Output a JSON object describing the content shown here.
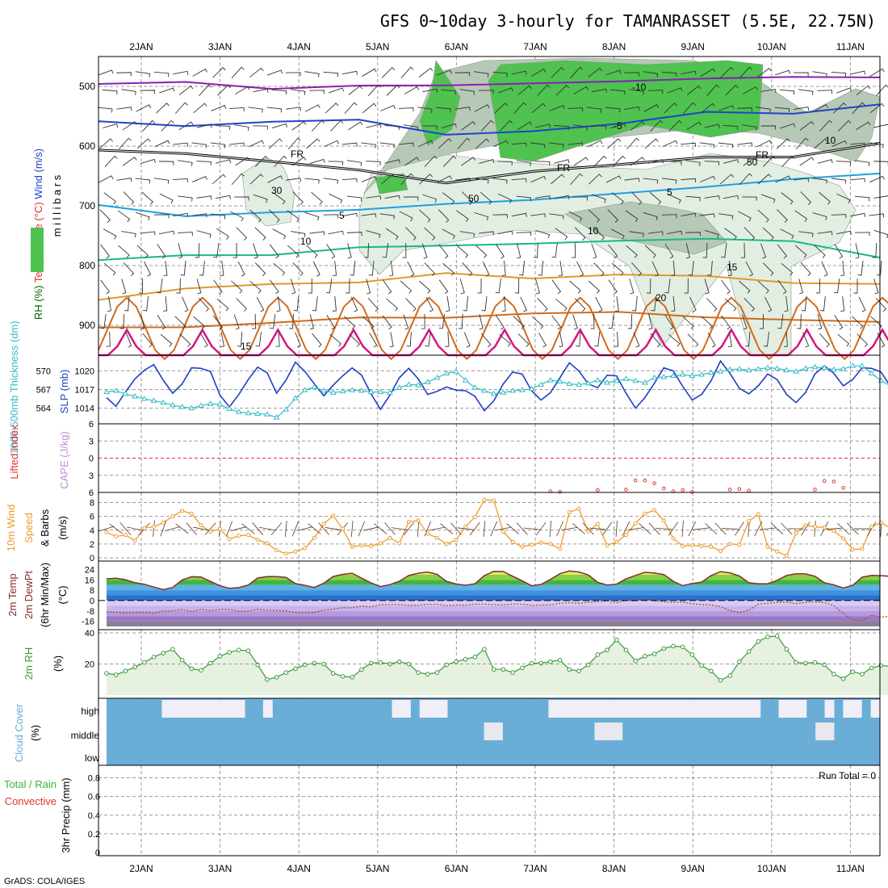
{
  "title": "GFS 0~10day 3-hourly for TAMANRASSET (5.5E, 22.75N)",
  "credit": "GrADS: COLA/IGES",
  "run_total": "Run Total = 0",
  "colors": {
    "rh_green": "#4fc24f",
    "rh_gray": "#b6c8b6",
    "rh_light": "#e2eee2",
    "temp_purple": "#8a1fb5",
    "temp_blue": "#1c45c9",
    "temp_lightblue": "#1fa0e0",
    "temp_teal": "#17b98a",
    "temp_orange": "#e0992a",
    "temp_darkorange": "#d06a1c",
    "temp_magenta": "#d5157e",
    "slp": "#1f3fc4",
    "thickness": "#33bcc8",
    "wind10m": "#f09a2a",
    "rh2m": "#3a9a3a",
    "cloud": "#6aaed8",
    "precip_red": "#e0342e"
  },
  "chart_data": [
    {
      "type": "contour",
      "name": "upper-air",
      "ylabel_parts": [
        "RH (%)",
        "Temperature (°C)",
        "Wind (m/s)"
      ],
      "yaxis_label": "m i l l i b a r s",
      "y_ticks": [
        500,
        600,
        700,
        800,
        900
      ],
      "ylim": [
        950,
        450
      ],
      "x_ticks": [
        "2JAN",
        "3JAN",
        "4JAN",
        "5JAN",
        "6JAN",
        "7JAN",
        "8JAN",
        "9JAN",
        "10JAN",
        "11JAN"
      ],
      "contour_labels": [
        "-10",
        "-5",
        "FR",
        "FR",
        "FR",
        "5",
        "5",
        "10",
        "10",
        "15",
        "15",
        "20",
        "50",
        "50",
        "30",
        "10"
      ],
      "isotherms": [
        {
          "name": "-10",
          "values": [
            -10.5,
            -10.3,
            -10.1,
            -10.8,
            -10.2,
            -10.0,
            -9.8,
            -10.4,
            -10.1,
            -10.0
          ]
        },
        {
          "name": "-5",
          "values": [
            -5.2,
            -4.8,
            -5.1,
            -4.9,
            -5.5,
            -5.0,
            -4.7,
            -5.3,
            -4.9,
            -5.0
          ]
        },
        {
          "name": "0",
          "values": [
            0.2,
            -0.3,
            0.1,
            0.0,
            -0.4,
            0.3,
            0.1,
            -0.2,
            0.4,
            0.0
          ]
        },
        {
          "name": "5",
          "values": [
            4.8,
            5.3,
            5.1,
            5.2,
            4.6,
            5.0,
            4.9,
            5.4,
            5.0,
            5.1
          ]
        },
        {
          "name": "10",
          "values": [
            10.1,
            9.7,
            10.3,
            9.9,
            10.2,
            10.4,
            9.8,
            10.0,
            9.9,
            10.2
          ]
        },
        {
          "name": "15",
          "values": [
            15.3,
            14.8,
            15.1,
            15.4,
            14.7,
            15.2,
            15.0,
            15.3,
            14.9,
            15.1
          ]
        },
        {
          "name": "20",
          "values": [
            19.8,
            20.4,
            20.1,
            19.6,
            20.3,
            20.0,
            19.7,
            20.2,
            20.1,
            19.9
          ]
        }
      ]
    },
    {
      "type": "line",
      "name": "thickness-slp",
      "ylabel_left": "1000-500mb Thickness (dm)",
      "ylabel_right": "SLP (mb)",
      "thickness_ticks": [
        570,
        567,
        564
      ],
      "slp_ticks": [
        1020,
        1017,
        1014
      ],
      "series": [
        {
          "name": "SLP (mb)",
          "values": [
            1015.7,
            1014.3,
            1016.6,
            1018.7,
            1020.1,
            1021.0,
            1018.5,
            1016.4,
            1017.9,
            1020.5,
            1020.4,
            1019.9,
            1016.1,
            1014.2,
            1016.2,
            1018.6,
            1020.6,
            1019.7,
            1016.4,
            1018.5,
            1021.4,
            1019.9,
            1017.9,
            1016.0,
            1017.7,
            1019.2,
            1020.5,
            1019.3,
            1016.3,
            1013.8,
            1016.1,
            1018.9,
            1020.4,
            1018.7,
            1016.2,
            1016.7,
            1017.4,
            1016.9,
            1016.8,
            1015.9,
            1013.6,
            1015.2,
            1017.9,
            1019.8,
            1019.5,
            1016.8,
            1015.3,
            1016.5,
            1018.9,
            1021.3,
            1020.0,
            1017.9,
            1017.3,
            1019.3,
            1019.2,
            1016.4,
            1014.0,
            1015.7,
            1018.0,
            1020.5,
            1020.0,
            1017.5,
            1015.3,
            1016.2,
            1018.4,
            1021.6,
            1019.6,
            1017.2,
            1016.3,
            1017.6,
            1019.5,
            1018.6,
            1016.2,
            1014.9,
            1016.5,
            1019.5,
            1020.8,
            1019.6,
            1017.6,
            1018.6,
            1020.5,
            1020.4,
            1019.8,
            1017.5
          ]
        },
        {
          "name": "Thickness (dm)",
          "values": [
            566.6,
            566.8,
            566.3,
            565.9,
            565.5,
            565.2,
            564.9,
            564.5,
            564.2,
            564.0,
            564.4,
            564.7,
            564.6,
            563.9,
            563.4,
            563.2,
            563.1,
            563.0,
            562.5,
            563.8,
            565.6,
            566.9,
            567.4,
            566.8,
            566.5,
            566.7,
            566.9,
            566.8,
            566.6,
            566.6,
            566.5,
            567.3,
            567.8,
            567.7,
            568.2,
            568.9,
            569.6,
            569.9,
            568.5,
            567.3,
            566.8,
            566.3,
            566.5,
            566.8,
            566.9,
            567.1,
            567.8,
            568.5,
            568.3,
            567.9,
            567.8,
            568.0,
            568.5,
            568.1,
            568.4,
            568.7,
            568.4,
            568.1,
            568.9,
            569.0,
            569.2,
            569.4,
            569.2,
            569.4,
            569.7,
            569.9,
            570.2,
            570.3,
            570.1,
            570.3,
            570.5,
            570.4,
            570.1,
            569.9,
            570.4,
            570.6,
            570.5,
            570.2,
            570.3,
            570.8,
            570.8,
            569.6,
            568.4,
            567.6
          ]
        }
      ]
    },
    {
      "type": "line",
      "name": "lifted-index-cape",
      "ylabel_left": "Lifted Index",
      "ylabel_right": "CAPE (J/kg)",
      "y_ticks": [
        "6",
        "3",
        "0",
        "3",
        "6"
      ],
      "y_values": [
        -6,
        -3,
        0,
        3,
        6
      ],
      "series": [
        {
          "name": "Lifted Index",
          "values": [
            {
              "x": 47,
              "y": 5.8
            },
            {
              "x": 48,
              "y": 5.9
            },
            {
              "x": 52,
              "y": 5.6
            },
            {
              "x": 55,
              "y": 5.5
            },
            {
              "x": 56,
              "y": 3.9
            },
            {
              "x": 57,
              "y": 3.9
            },
            {
              "x": 58,
              "y": 4.4
            },
            {
              "x": 59,
              "y": 5.3
            },
            {
              "x": 60,
              "y": 5.8
            },
            {
              "x": 61,
              "y": 5.6
            },
            {
              "x": 62,
              "y": 5.9
            },
            {
              "x": 66,
              "y": 5.5
            },
            {
              "x": 67,
              "y": 5.4
            },
            {
              "x": 68,
              "y": 5.7
            },
            {
              "x": 75,
              "y": 5.5
            },
            {
              "x": 76,
              "y": 4.0
            },
            {
              "x": 77,
              "y": 4.1
            },
            {
              "x": 78,
              "y": 5.2
            }
          ]
        }
      ]
    },
    {
      "type": "line",
      "name": "wind10m",
      "ylabel": "10m Wind Speed & Barbs (m/s)",
      "y_ticks": [
        0,
        2,
        4,
        6,
        8
      ],
      "ylim": [
        0,
        9
      ],
      "series": [
        {
          "name": "10m Wind Speed (m/s)",
          "values": [
            3.7,
            3.1,
            3.3,
            2.5,
            4.3,
            4.5,
            5.1,
            6.0,
            6.8,
            6.4,
            4.7,
            3.8,
            4.2,
            2.7,
            3.2,
            3.3,
            2.6,
            2.1,
            1.1,
            0.6,
            0.9,
            1.4,
            2.9,
            4.9,
            6.1,
            4.2,
            1.6,
            1.8,
            1.7,
            2.1,
            2.9,
            2.1,
            5.2,
            5.4,
            3.5,
            2.9,
            2.0,
            2.6,
            4.5,
            5.9,
            8.4,
            8.3,
            3.8,
            2.3,
            1.6,
            1.9,
            2.2,
            2.0,
            1.3,
            6.6,
            7.1,
            3.8,
            4.9,
            1.8,
            2.3,
            3.3,
            5.0,
            6.4,
            6.9,
            5.4,
            2.8,
            1.7,
            1.8,
            1.7,
            1.6,
            1.0,
            2.0,
            1.9,
            5.3,
            6.3,
            1.6,
            0.9,
            0.3,
            3.6,
            4.7,
            4.5,
            4.4,
            3.9,
            2.8,
            1.2,
            1.3,
            4.5,
            5.1,
            4.3
          ]
        }
      ]
    },
    {
      "type": "area",
      "name": "temp2m",
      "ylabel_parts": [
        "2m Temp",
        "2m DewPt",
        "(6hr Min/Max)",
        "(°C)"
      ],
      "y_ticks": [
        24,
        16,
        8,
        0,
        -8,
        -16
      ],
      "ylim": [
        -20,
        28
      ],
      "series": [
        {
          "name": "2m Temp (°C)",
          "values": [
            16.8,
            17.3,
            16.1,
            13.8,
            12.6,
            10.4,
            8.5,
            10.1,
            15.9,
            18.4,
            18.2,
            14.8,
            11.4,
            9.4,
            10.0,
            12.0,
            17.4,
            18.5,
            18.5,
            17.9,
            13.1,
            11.7,
            10.1,
            13.4,
            18.6,
            20.2,
            21.1,
            17.3,
            13.6,
            10.8,
            12.3,
            14.9,
            19.4,
            21.1,
            22.0,
            20.2,
            14.8,
            12.8,
            11.8,
            13.0,
            19.3,
            22.5,
            22.4,
            18.8,
            15.3,
            11.4,
            12.5,
            16.4,
            20.7,
            22.8,
            22.1,
            19.8,
            14.1,
            12.0,
            12.7,
            16.8,
            19.4,
            21.8,
            21.2,
            20.1,
            14.9,
            11.5,
            13.2,
            14.2,
            19.3,
            22.3,
            21.4,
            19.0,
            13.7,
            13.0,
            13.0,
            15.6,
            19.4,
            20.7,
            20.6,
            18.8,
            13.8,
            12.1,
            9.7,
            11.7,
            18.1,
            19.4,
            19.2,
            18.7
          ]
        },
        {
          "name": "2m DewPt (°C)",
          "values": [
            -8.7,
            -9.1,
            -9.6,
            -9.4,
            -9.2,
            -9.9,
            -8.1,
            -7.9,
            -7.0,
            -8.5,
            -6.7,
            -7.9,
            -6.9,
            -7.0,
            -8.4,
            -8.1,
            -6.7,
            -7.6,
            -7.7,
            -8.0,
            -9.2,
            -9.4,
            -9.1,
            -7.5,
            -6.7,
            -5.5,
            -5.6,
            -4.3,
            -4.9,
            -3.3,
            -3.2,
            -3.2,
            -3.7,
            -3.6,
            -2.9,
            -2.9,
            -4.0,
            -3.5,
            -3.6,
            -2.8,
            -2.8,
            -3.2,
            -3.5,
            -2.7,
            -2.8,
            -3.7,
            -3.5,
            -3.4,
            -2.1,
            -1.6,
            -2.1,
            -1.3,
            -1.0,
            -0.3,
            -1.7,
            0.1,
            -0.4,
            1.7,
            -0.2,
            -0.9,
            -1.5,
            -1.2,
            -2.5,
            -3.1,
            -3.4,
            -4.7,
            -7.7,
            -9.4,
            -7.5,
            -2.8,
            -2.2,
            -1.4,
            -1.2,
            -2.4,
            -1.5,
            -1.0,
            -1.7,
            -3.8,
            -10.0,
            -15.0,
            -15.4,
            -11.3,
            -12.8,
            -12.1
          ]
        }
      ]
    },
    {
      "type": "area",
      "name": "rh2m",
      "ylabel": "2m RH (%)",
      "y_ticks": [
        40,
        20
      ],
      "ylim": [
        0,
        40
      ],
      "series": [
        {
          "name": "2m RH (%)",
          "values": [
            14.0,
            13.0,
            15.5,
            18.0,
            21.0,
            24.5,
            27.0,
            29.5,
            22.5,
            17.0,
            16.0,
            20.5,
            25.0,
            27.5,
            29.0,
            28.5,
            19.5,
            10.0,
            11.5,
            14.5,
            17.0,
            19.5,
            20.5,
            20.0,
            14.0,
            12.0,
            11.5,
            16.5,
            20.5,
            21.0,
            20.0,
            21.5,
            20.0,
            14.5,
            13.5,
            14.5,
            19.5,
            21.5,
            23.0,
            24.5,
            29.5,
            16.5,
            16.5,
            14.5,
            17.5,
            20.5,
            20.5,
            21.5,
            22.5,
            16.5,
            15.5,
            19.5,
            26.0,
            29.0,
            35.5,
            29.0,
            22.0,
            25.0,
            26.5,
            30.0,
            31.5,
            31.0,
            26.0,
            19.0,
            15.5,
            9.5,
            12.5,
            21.5,
            28.0,
            34.5,
            37.5,
            38.0,
            29.5,
            21.0,
            20.5,
            21.0,
            19.5,
            13.5,
            10.5,
            15.0,
            13.5,
            17.5,
            19.0,
            18.5
          ]
        }
      ]
    },
    {
      "type": "heatmap",
      "name": "cloud-cover",
      "ylabel": "Cloud Cover (%)",
      "y_ticks": [
        "high",
        "middle",
        "low"
      ],
      "note": "blue = cloud cover, light = clear",
      "high_clear": [
        0,
        0,
        0,
        0,
        0,
        0,
        1,
        1,
        1,
        1,
        1,
        1,
        1,
        1,
        1,
        0,
        0,
        1,
        0,
        0,
        0,
        0,
        0,
        0,
        0,
        0,
        0,
        0,
        0,
        0,
        0,
        1,
        1,
        0,
        1,
        1,
        1,
        0,
        0,
        0,
        0,
        0,
        0,
        0,
        0,
        0,
        0,
        0,
        1,
        1,
        1,
        1,
        1,
        1,
        1,
        1,
        1,
        1,
        1,
        1,
        1,
        1,
        1,
        1,
        1,
        1,
        1,
        1,
        1,
        1,
        1,
        0,
        0,
        1,
        1,
        1,
        0,
        0,
        1,
        0,
        1,
        1,
        0,
        1
      ],
      "middle_clear": [
        0,
        0,
        0,
        0,
        0,
        0,
        0,
        0,
        0,
        0,
        0,
        0,
        0,
        0,
        0,
        0,
        0,
        0,
        0,
        0,
        0,
        0,
        0,
        0,
        0,
        0,
        0,
        0,
        0,
        0,
        0,
        0,
        0,
        0,
        0,
        0,
        0,
        0,
        0,
        0,
        0,
        1,
        1,
        0,
        0,
        0,
        0,
        0,
        0,
        0,
        0,
        0,
        0,
        1,
        1,
        1,
        0,
        0,
        0,
        0,
        0,
        0,
        0,
        0,
        0,
        0,
        0,
        0,
        0,
        0,
        0,
        0,
        0,
        0,
        0,
        0,
        0,
        1,
        1,
        0,
        0,
        0,
        0,
        0
      ]
    },
    {
      "type": "bar",
      "name": "precip",
      "ylabel_parts": [
        "Total / Rain",
        "Convective",
        "3hr Precip (mm)"
      ],
      "y_ticks": [
        "0.8",
        "0.6",
        "0.4",
        "0.2",
        "0"
      ],
      "ylim": [
        0,
        0.9
      ],
      "values": [
        0,
        0,
        0,
        0,
        0,
        0,
        0,
        0,
        0,
        0,
        0,
        0,
        0,
        0,
        0,
        0,
        0,
        0,
        0,
        0,
        0,
        0,
        0,
        0,
        0,
        0,
        0,
        0,
        0,
        0,
        0,
        0,
        0,
        0,
        0,
        0,
        0,
        0,
        0,
        0,
        0,
        0,
        0,
        0,
        0,
        0,
        0,
        0,
        0,
        0,
        0,
        0,
        0,
        0,
        0,
        0,
        0,
        0,
        0,
        0,
        0,
        0,
        0,
        0,
        0,
        0,
        0,
        0,
        0,
        0,
        0,
        0,
        0,
        0,
        0,
        0,
        0,
        0,
        0,
        0,
        0,
        0,
        0,
        0
      ]
    }
  ]
}
